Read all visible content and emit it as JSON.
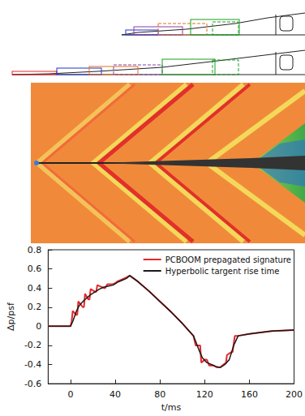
{
  "chart_data": {
    "type": "line",
    "y_label": "Δp/psf",
    "x_label": "t/ms",
    "xlim": [
      -20,
      200
    ],
    "xticks": [
      0,
      40,
      80,
      120,
      160,
      200
    ],
    "ylim": [
      -0.6,
      0.8
    ],
    "yticks": [
      -0.6,
      -0.4,
      -0.2,
      0,
      0.2,
      0.4,
      0.6,
      0.8
    ],
    "grid": false,
    "legend": "upper right",
    "series": [
      {
        "name": "PCBOOM prepagated signature",
        "color": "#e8262a",
        "line_style": "solid",
        "x": [
          -20,
          0,
          1,
          2,
          5,
          6,
          7,
          11,
          12,
          13,
          16,
          17,
          18,
          22,
          23,
          24,
          30,
          31,
          33,
          38,
          40,
          42,
          46,
          50,
          53,
          60,
          70,
          80,
          90,
          100,
          110,
          112,
          116,
          117,
          120,
          122,
          124,
          128,
          131,
          134,
          138,
          139,
          140,
          144,
          145,
          147,
          150,
          160,
          180,
          200
        ],
        "values": [
          0,
          0,
          0.05,
          0.16,
          0.12,
          0.12,
          0.26,
          0.2,
          0.2,
          0.34,
          0.28,
          0.28,
          0.39,
          0.36,
          0.36,
          0.43,
          0.4,
          0.4,
          0.44,
          0.44,
          0.45,
          0.47,
          0.49,
          0.51,
          0.53,
          0.47,
          0.37,
          0.26,
          0.15,
          0.03,
          -0.1,
          -0.2,
          -0.2,
          -0.38,
          -0.35,
          -0.35,
          -0.41,
          -0.41,
          -0.43,
          -0.43,
          -0.39,
          -0.39,
          -0.3,
          -0.27,
          -0.27,
          -0.1,
          -0.1,
          -0.08,
          -0.05,
          -0.04
        ]
      },
      {
        "name": "Hyperbolic targent rise time",
        "color": "#1a1a1a",
        "line_style": "solid",
        "x": [
          -20,
          0,
          2,
          5,
          8,
          12,
          15,
          18,
          22,
          26,
          30,
          34,
          38,
          42,
          46,
          50,
          53,
          60,
          70,
          80,
          90,
          100,
          110,
          115,
          118,
          122,
          126,
          130,
          134,
          138,
          142,
          146,
          150,
          160,
          180,
          200
        ],
        "values": [
          0,
          0,
          0.05,
          0.15,
          0.22,
          0.27,
          0.3,
          0.33,
          0.36,
          0.39,
          0.41,
          0.42,
          0.43,
          0.46,
          0.48,
          0.5,
          0.53,
          0.47,
          0.37,
          0.26,
          0.15,
          0.03,
          -0.1,
          -0.25,
          -0.33,
          -0.38,
          -0.4,
          -0.42,
          -0.43,
          -0.4,
          -0.35,
          -0.2,
          -0.1,
          -0.08,
          -0.05,
          -0.04
        ]
      }
    ]
  }
}
